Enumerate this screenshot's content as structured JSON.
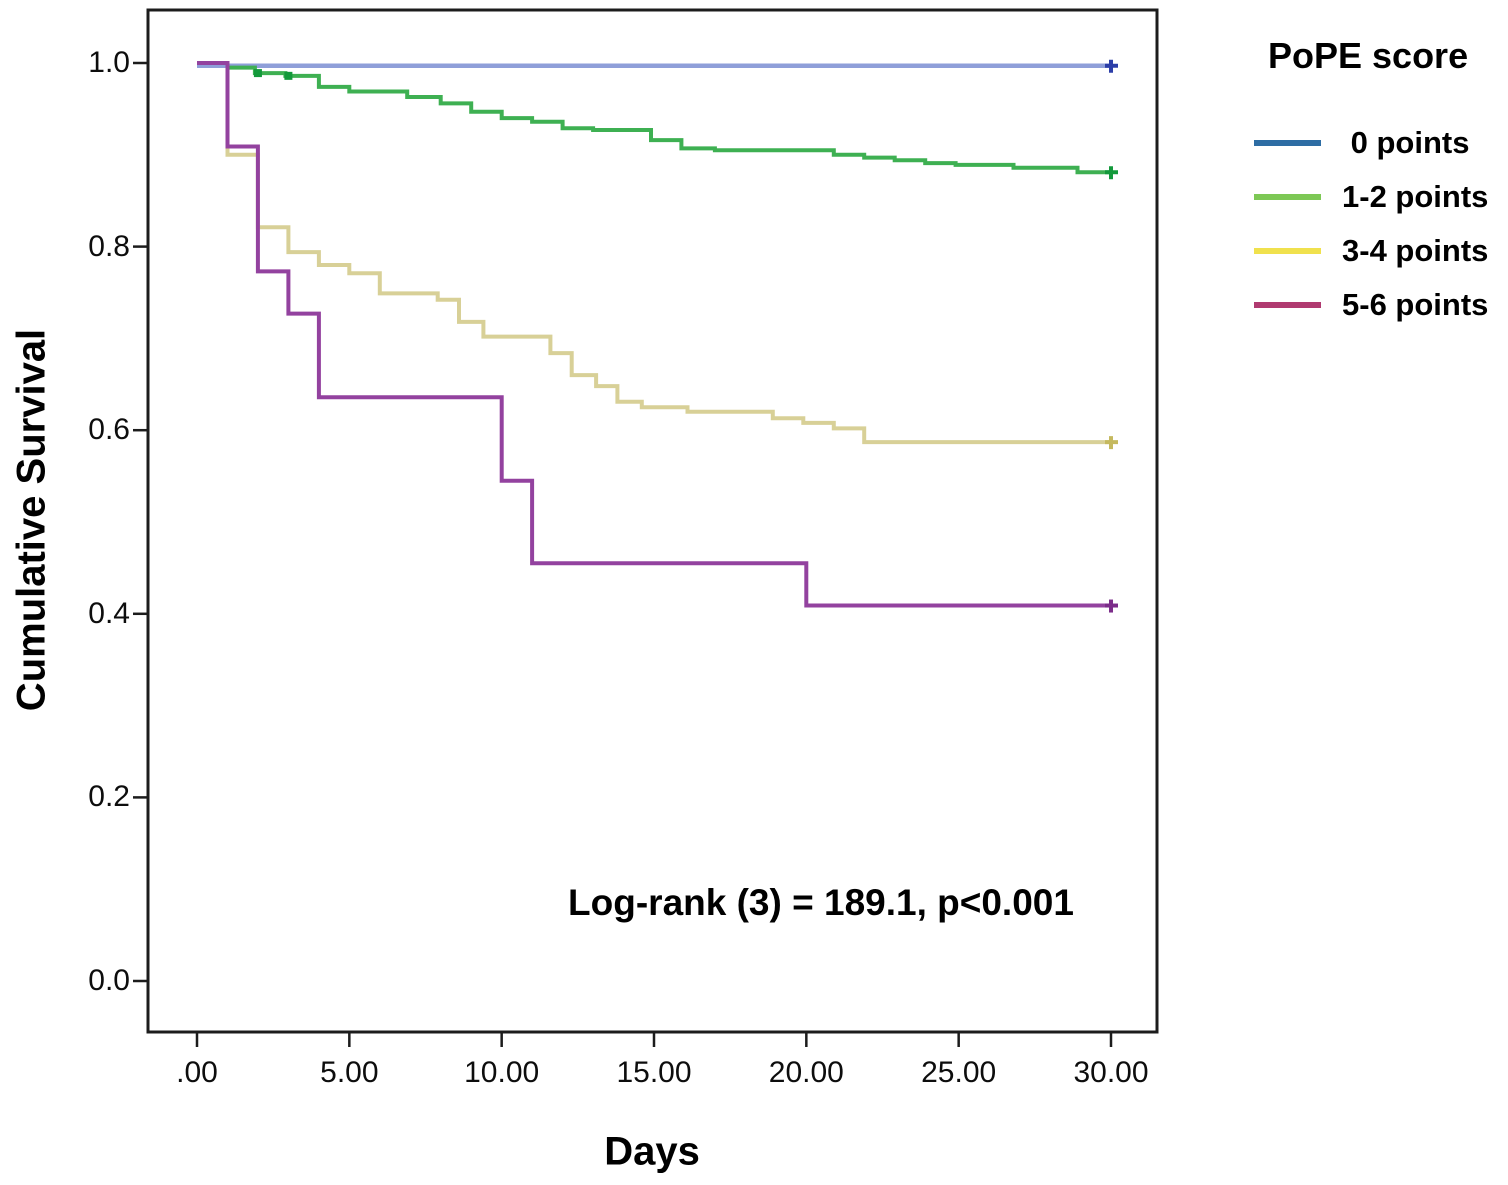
{
  "chart_data": {
    "type": "line",
    "chart_style": "kaplan-meier-step",
    "title": "",
    "xlabel": "Days",
    "ylabel": "Cumulative Survival",
    "xlim": [
      0,
      30
    ],
    "ylim": [
      0.0,
      1.0
    ],
    "grid": false,
    "annotation": "Log-rank (3) = 189.1, p<0.001",
    "x_ticks": [
      {
        "value": 0,
        "label": ".00"
      },
      {
        "value": 5,
        "label": "5.00"
      },
      {
        "value": 10,
        "label": "10.00"
      },
      {
        "value": 15,
        "label": "15.00"
      },
      {
        "value": 20,
        "label": "20.00"
      },
      {
        "value": 25,
        "label": "25.00"
      },
      {
        "value": 30,
        "label": "30.00"
      }
    ],
    "y_ticks": [
      {
        "value": 1.0,
        "label": "1.0"
      },
      {
        "value": 0.8,
        "label": "0.8"
      },
      {
        "value": 0.6,
        "label": "0.6"
      },
      {
        "value": 0.4,
        "label": "0.4"
      },
      {
        "value": 0.2,
        "label": "0.2"
      },
      {
        "value": 0.0,
        "label": "0.0"
      }
    ],
    "legend": {
      "title": "PoPE score",
      "position": "top-right"
    },
    "series": [
      {
        "name": " 0 points",
        "line_color": "#8f9fd9",
        "legend_color": "#2e6da4",
        "marker_color": "#2c3ea8",
        "line_width": 4.5,
        "end_censor": true,
        "points": [
          [
            0,
            0.997
          ],
          [
            30,
            0.997
          ]
        ]
      },
      {
        "name": "1-2 points",
        "line_color": "#3eb052",
        "legend_color": "#7dc855",
        "marker_color": "#13993b",
        "line_width": 4,
        "end_censor": true,
        "censor_days": [
          2.0,
          3.0
        ],
        "points": [
          [
            0,
            1.0
          ],
          [
            1,
            0.995
          ],
          [
            1.9,
            0.989
          ],
          [
            2.9,
            0.986
          ],
          [
            4,
            0.974
          ],
          [
            5,
            0.969
          ],
          [
            6.9,
            0.963
          ],
          [
            8,
            0.956
          ],
          [
            9,
            0.947
          ],
          [
            10,
            0.94
          ],
          [
            11,
            0.936
          ],
          [
            12,
            0.929
          ],
          [
            13,
            0.927
          ],
          [
            14.9,
            0.916
          ],
          [
            15.9,
            0.907
          ],
          [
            17,
            0.905
          ],
          [
            20.9,
            0.9
          ],
          [
            21.9,
            0.897
          ],
          [
            22.9,
            0.894
          ],
          [
            23.9,
            0.891
          ],
          [
            24.9,
            0.889
          ],
          [
            26.8,
            0.886
          ],
          [
            28.9,
            0.881
          ],
          [
            30,
            0.881
          ]
        ]
      },
      {
        "name": "3-4 points",
        "line_color": "#d8d097",
        "legend_color": "#f0e14d",
        "marker_color": "#c5b95f",
        "line_width": 4,
        "end_censor": true,
        "points": [
          [
            0,
            1.0
          ],
          [
            1,
            0.9
          ],
          [
            2,
            0.821
          ],
          [
            3,
            0.794
          ],
          [
            4,
            0.78
          ],
          [
            5,
            0.771
          ],
          [
            6,
            0.749
          ],
          [
            7.9,
            0.742
          ],
          [
            8.6,
            0.718
          ],
          [
            9.4,
            0.702
          ],
          [
            11.6,
            0.684
          ],
          [
            12.3,
            0.66
          ],
          [
            13.1,
            0.648
          ],
          [
            13.8,
            0.631
          ],
          [
            14.6,
            0.625
          ],
          [
            16.1,
            0.62
          ],
          [
            18.9,
            0.613
          ],
          [
            19.9,
            0.608
          ],
          [
            20.9,
            0.602
          ],
          [
            21.9,
            0.587
          ],
          [
            30,
            0.587
          ]
        ]
      },
      {
        "name": "5-6 points",
        "line_color": "#93429f",
        "legend_color": "#b03a70",
        "marker_color": "#7c2d8a",
        "line_width": 4,
        "end_censor": true,
        "points": [
          [
            0,
            1.0
          ],
          [
            1,
            0.909
          ],
          [
            2,
            0.773
          ],
          [
            3,
            0.727
          ],
          [
            4,
            0.636
          ],
          [
            10,
            0.545
          ],
          [
            11,
            0.455
          ],
          [
            20,
            0.409
          ],
          [
            30,
            0.409
          ]
        ]
      }
    ]
  }
}
